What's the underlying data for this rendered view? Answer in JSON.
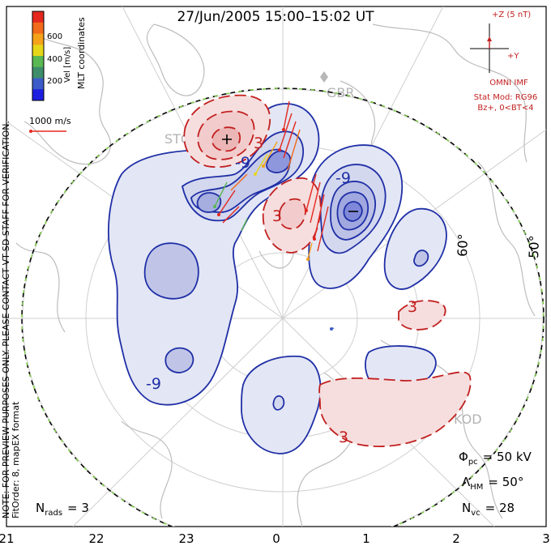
{
  "title": "27/Jun/2005  15:00–15:02  UT",
  "side_note_1": "NOTE: FOR PREVIEW PURPOSES ONLY. PLEASE CONTACT VT-SD STAFF FOR VERIFICATION.",
  "side_note_2": "FitOrder: 8,  mapEX format",
  "coord_system": "MLT coordinates",
  "color_scale": {
    "label": "Vel [m/s]",
    "ticks": [
      "600",
      "400",
      "200"
    ],
    "colors": [
      "#e4281e",
      "#f26a1b",
      "#f4a21a",
      "#e6d619",
      "#5ab852",
      "#3e8d6a",
      "#3c5bc8",
      "#1e1ee0"
    ]
  },
  "reference_vector": "1000 m/s",
  "imf": {
    "title": "OMNI IMF",
    "scale": "+Z (5 nT)",
    "y_label": "+Y",
    "model_1": "Stat Mod: RG96",
    "model_2": "Bz+, 0<BT<4"
  },
  "stations": [
    "GBR",
    "STO",
    "KOD"
  ],
  "contour_labels": [
    "-9",
    "3",
    "-9",
    "3",
    "-9",
    "3",
    "3",
    "-9",
    "3"
  ],
  "lat_labels": [
    "60°",
    "50°"
  ],
  "stats": {
    "phi_label": "Φ",
    "phi_sub": "pc",
    "phi_value": "= 50 kV",
    "lam_label": "Λ",
    "lam_sub": "HM",
    "lam_value": "= 50°",
    "nvc_label": "N",
    "nvc_sub": "vc",
    "nvc_value": "= 28",
    "nrads_label": "N",
    "nrads_sub": "rads",
    "nrads_value": "= 3"
  },
  "chart_data": {
    "type": "polar-map",
    "mlt_axis_labels": [
      "21",
      "22",
      "23",
      "0",
      "1",
      "2",
      "3"
    ],
    "lat_circles_deg": [
      60,
      50
    ],
    "contour_interval_kV": 6,
    "potential_extrema": {
      "negative_labeled": -9,
      "positive_labeled": 3
    },
    "cross_polar_cap_potential_kV": 50,
    "heppner_maynard_boundary_deg": 50,
    "num_vectors": 28,
    "num_radars": 3
  }
}
